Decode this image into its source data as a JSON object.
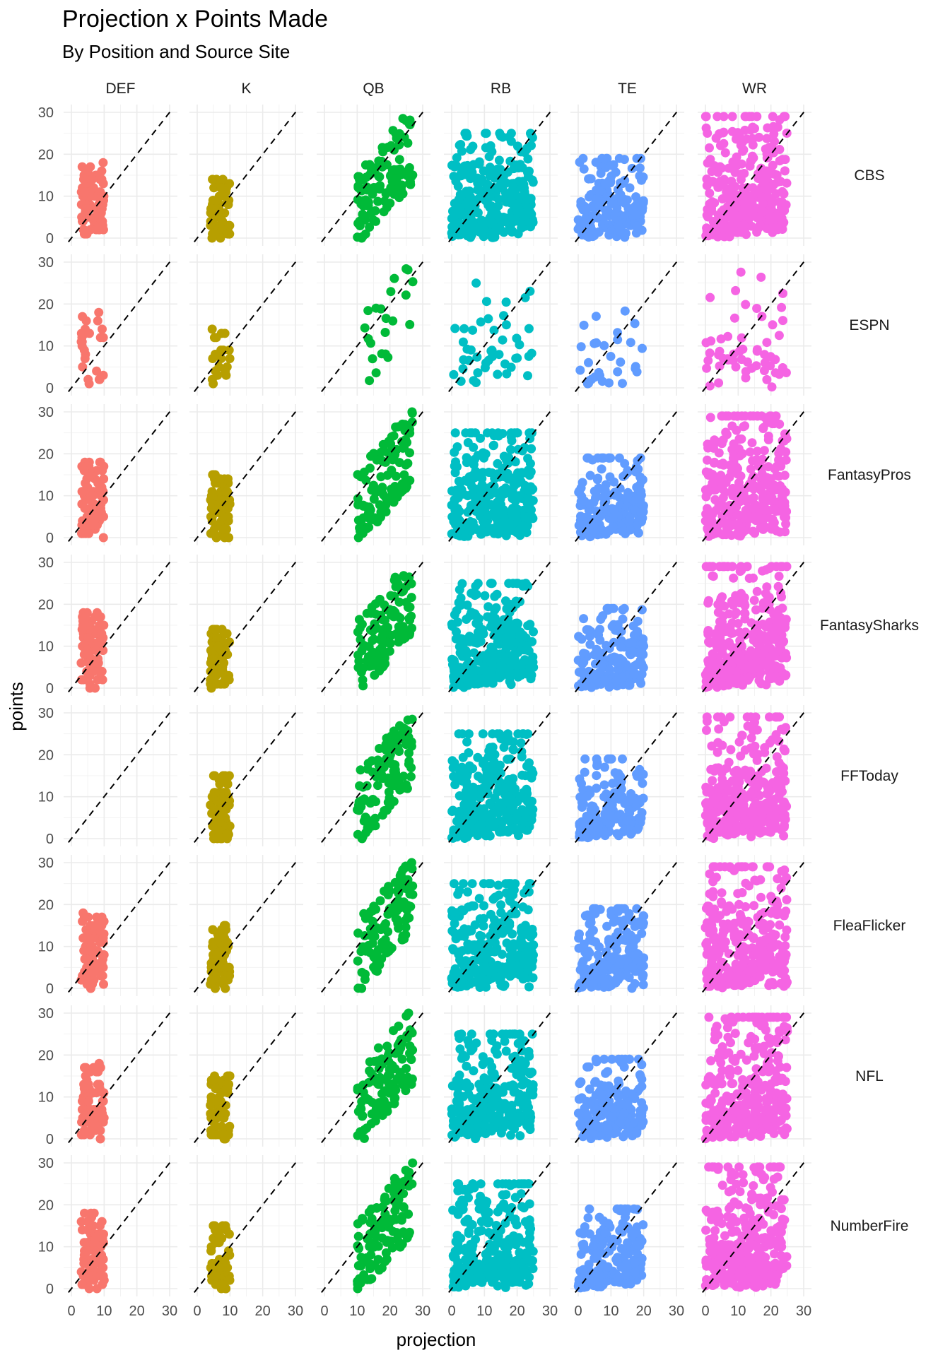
{
  "chart_data": {
    "type": "scatter",
    "title": "Projection x Points Made",
    "subtitle": "By Position and Source Site",
    "xlabel": "projection",
    "ylabel": "points",
    "xlim": [
      0,
      30
    ],
    "ylim": [
      0,
      30
    ],
    "x_ticks": [
      "0",
      "10",
      "20",
      "30"
    ],
    "y_ticks": [
      "0",
      "10",
      "20",
      "30"
    ],
    "grid": true,
    "reference_line": "y = x (dashed)",
    "facet_columns": [
      "DEF",
      "K",
      "QB",
      "RB",
      "TE",
      "WR"
    ],
    "facet_rows": [
      "CBS",
      "ESPN",
      "FantasyPros",
      "FantasySharks",
      "FFToday",
      "FleaFlicker",
      "NFL",
      "NumberFire"
    ],
    "colors": {
      "DEF": "#F8766D",
      "K": "#B79F00",
      "QB": "#00BA38",
      "RB": "#00BFC4",
      "TE": "#619CFF",
      "WR": "#F564E3"
    },
    "panel_spec": {
      "DEF": {
        "x_range": [
          3,
          10
        ],
        "y_max": 18,
        "approx_points": {
          "dense": 80,
          "sparse": 25
        }
      },
      "K": {
        "x_range": [
          4,
          10
        ],
        "y_max": 15,
        "approx_points": {
          "dense": 70,
          "sparse": 20
        }
      },
      "QB": {
        "x_range": [
          10,
          27
        ],
        "y_max": 30,
        "approx_points": {
          "dense": 110,
          "sparse": 22
        }
      },
      "RB": {
        "x_range": [
          0,
          25
        ],
        "y_max": 25,
        "approx_points": {
          "dense": 300,
          "sparse": 45
        }
      },
      "TE": {
        "x_range": [
          0,
          20
        ],
        "y_max": 19,
        "approx_points": {
          "dense": 180,
          "sparse": 30
        }
      },
      "WR": {
        "x_range": [
          0,
          25
        ],
        "y_max": 29,
        "approx_points": {
          "dense": 320,
          "sparse": 55
        }
      }
    },
    "empty_panels": [
      [
        "FFToday",
        "DEF"
      ]
    ],
    "sparse_row": "ESPN"
  }
}
